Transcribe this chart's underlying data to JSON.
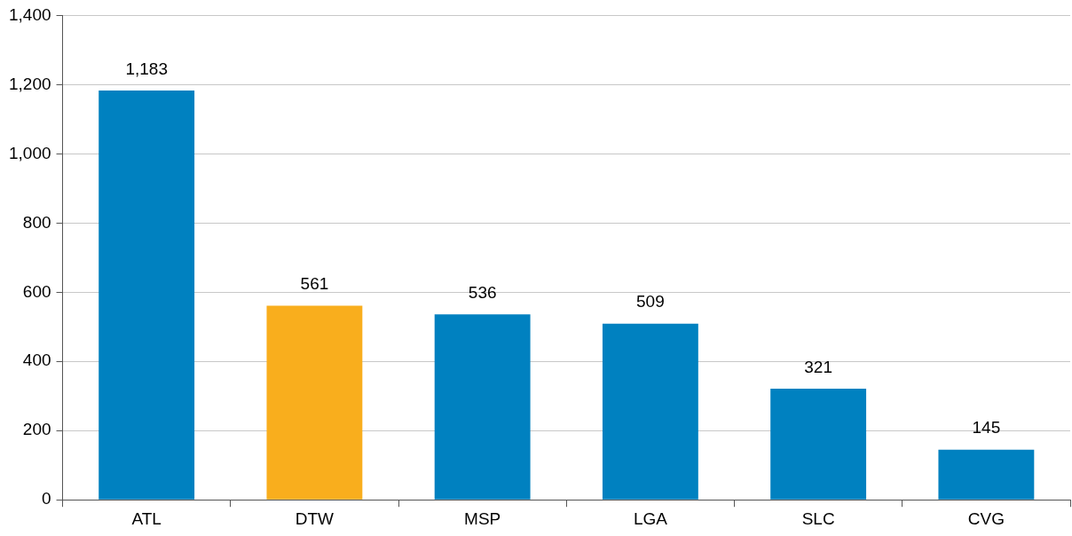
{
  "chart_data": {
    "type": "bar",
    "categories": [
      "ATL",
      "DTW",
      "MSP",
      "LGA",
      "SLC",
      "CVG"
    ],
    "values": [
      1183,
      561,
      536,
      509,
      321,
      145
    ],
    "colors": [
      "#0081c0",
      "#f9ae1d",
      "#0081c0",
      "#0081c0",
      "#0081c0",
      "#0081c0"
    ],
    "value_labels": [
      "1,183",
      "561",
      "536",
      "509",
      "321",
      "145"
    ],
    "ylim": [
      0,
      1400
    ],
    "yticks": [
      0,
      200,
      400,
      600,
      800,
      {
        "value": 1000,
        "label": "1,000"
      },
      {
        "value": 1200,
        "label": "1,200"
      },
      {
        "value": 1400,
        "label": "1,400"
      }
    ],
    "grid": "y",
    "legend": false
  }
}
